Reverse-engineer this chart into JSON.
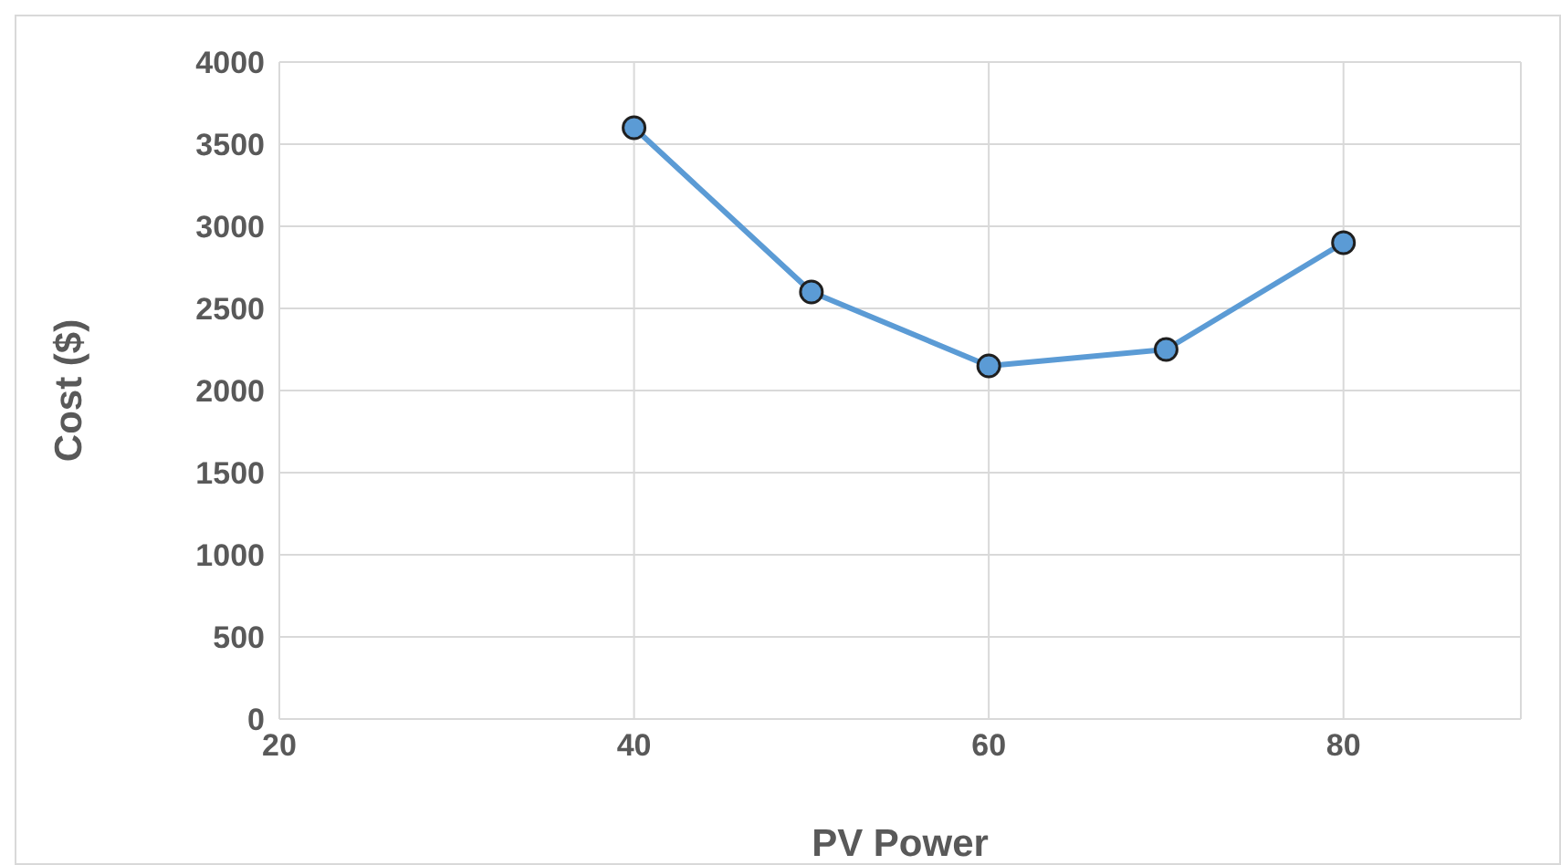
{
  "chart_data": {
    "type": "line",
    "xlabel": "PV Power",
    "ylabel": "Cost  ($)",
    "x": [
      40,
      50,
      60,
      70,
      80
    ],
    "series": [
      {
        "color": "#5b9bd5",
        "values": [
          3600,
          2600,
          2150,
          2250,
          2900
        ]
      }
    ],
    "xlim": [
      20,
      90
    ],
    "xticks": [
      20,
      40,
      60,
      80
    ],
    "ylim": [
      0,
      4000
    ],
    "yticks": [
      0,
      500,
      1000,
      1500,
      2000,
      2500,
      3000,
      3500,
      4000
    ],
    "grid": true,
    "marker": "circle",
    "line_style": "solid",
    "legend": false
  }
}
